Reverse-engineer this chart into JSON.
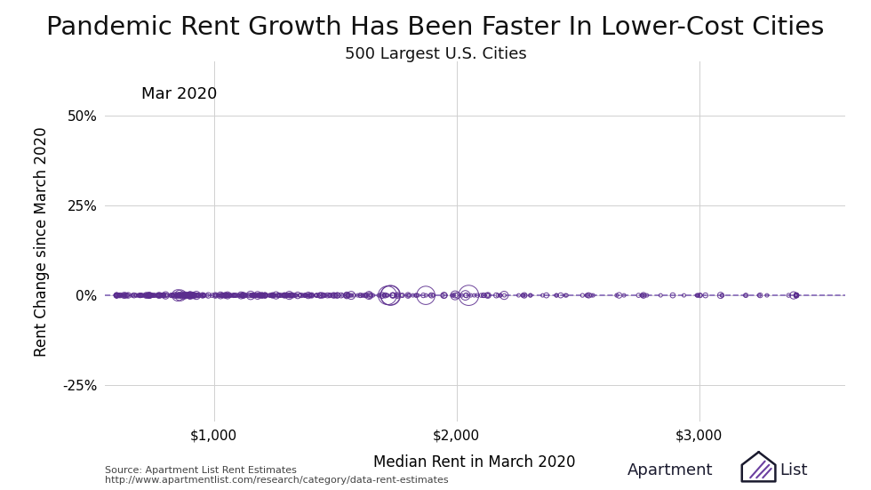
{
  "title": "Pandemic Rent Growth Has Been Faster In Lower-Cost Cities",
  "subtitle": "500 Largest U.S. Cities",
  "xlabel": "Median Rent in March 2020",
  "ylabel": "Rent Change since March 2020",
  "annotation": "Mar 2020",
  "source_line1": "Source: Apartment List Rent Estimates",
  "source_line2": "http://www.apartmentlist.com/research/category/data-rent-estimates",
  "dot_color": "#5B2D8E",
  "dashed_color": "#7B5BB5",
  "background_color": "#ffffff",
  "grid_color": "#d0d0d0",
  "xlim": [
    550,
    3600
  ],
  "ylim": [
    -0.35,
    0.65
  ],
  "yticks": [
    -0.25,
    0.0,
    0.25,
    0.5
  ],
  "xticks": [
    1000,
    2000,
    3000
  ],
  "num_points": 500,
  "x_min": 600,
  "x_max": 3400,
  "title_fontsize": 21,
  "subtitle_fontsize": 13,
  "label_fontsize": 12,
  "tick_fontsize": 11,
  "annotation_fontsize": 13,
  "source_fontsize": 8,
  "logo_text_fontsize": 13,
  "logo_color": "#1a1a2e"
}
